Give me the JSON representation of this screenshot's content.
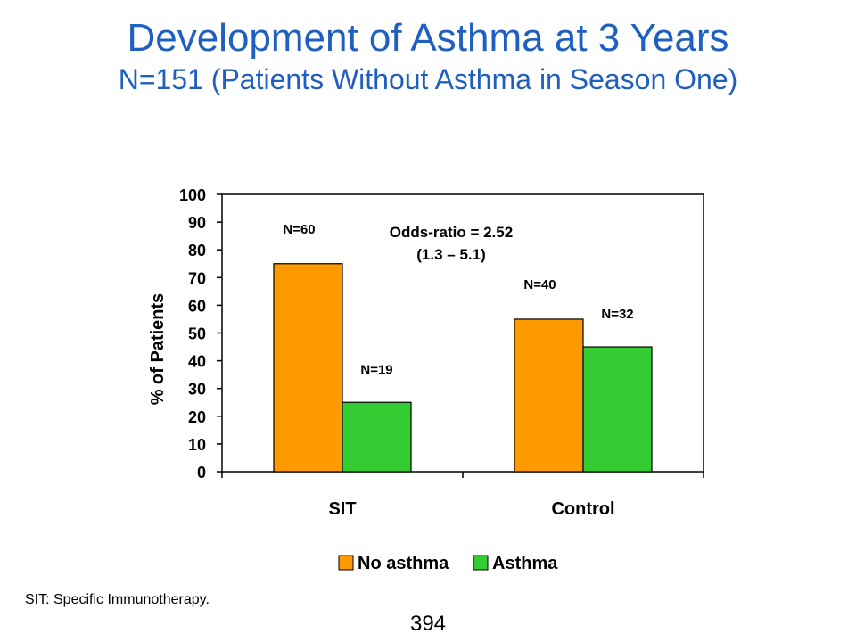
{
  "slide": {
    "title": "Development of Asthma at 3 Years",
    "subtitle": "N=151 (Patients Without Asthma in Season One)",
    "footnote": "SIT: Specific Immunotherapy.",
    "page_number": "394"
  },
  "colors": {
    "title": "#1f5fbf",
    "no_asthma": "#ff9900",
    "asthma": "#33cc33"
  },
  "chart_data": {
    "type": "bar",
    "categories": [
      "SIT",
      "Control"
    ],
    "series": [
      {
        "name": "No asthma",
        "values": [
          75,
          55
        ],
        "labels": [
          "N=60",
          "N=40"
        ],
        "color": "#ff9900"
      },
      {
        "name": "Asthma",
        "values": [
          25,
          45
        ],
        "labels": [
          "N=19",
          "N=32"
        ],
        "color": "#33cc33"
      }
    ],
    "ylabel": "% of Patients",
    "xlabel": "",
    "ylim": [
      0,
      100
    ],
    "yticks": [
      0,
      10,
      20,
      30,
      40,
      50,
      60,
      70,
      80,
      90,
      100
    ],
    "annotation": [
      "Odds-ratio = 2.52",
      "(1.3 – 5.1)"
    ],
    "legend_position": "bottom",
    "grid": false
  }
}
